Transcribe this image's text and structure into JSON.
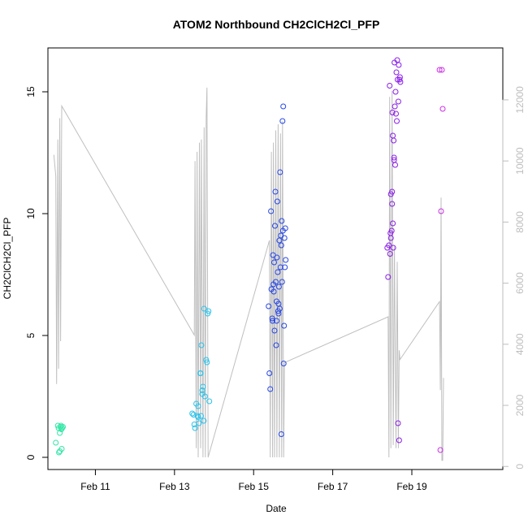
{
  "chart_data": {
    "type": "scatter",
    "title": "ATOM2 Northbound CH2ClCH2Cl_PFP",
    "xlabel": "Date",
    "ylabel": "CH2ClCH2Cl_PFP",
    "x_unit": "days since Feb 10",
    "xlim": [
      -0.2,
      11.3
    ],
    "ylim": [
      -0.5,
      16.8
    ],
    "y2lim": [
      -100,
      13700
    ],
    "x_ticks": [
      {
        "value": 1,
        "label": "Feb 11"
      },
      {
        "value": 3,
        "label": "Feb 13"
      },
      {
        "value": 5,
        "label": "Feb 15"
      },
      {
        "value": 7,
        "label": "Feb 17"
      },
      {
        "value": 9,
        "label": "Feb 19"
      }
    ],
    "y_ticks": [
      {
        "value": 0,
        "label": "0"
      },
      {
        "value": 5,
        "label": "5"
      },
      {
        "value": 10,
        "label": "10"
      },
      {
        "value": 15,
        "label": "15"
      }
    ],
    "y2_ticks": [
      {
        "value": 0,
        "label": "0"
      },
      {
        "value": 2000,
        "label": "2000"
      },
      {
        "value": 4000,
        "label": "4000"
      },
      {
        "value": 6000,
        "label": "6000"
      },
      {
        "value": 8000,
        "label": "8000"
      },
      {
        "value": 10000,
        "label": "10000"
      },
      {
        "value": 12000,
        "label": "12000"
      }
    ],
    "series": [
      {
        "name": "points_group_1",
        "color": "#33e6a6",
        "points": [
          [
            0.0,
            0.6
          ],
          [
            0.05,
            1.3
          ],
          [
            0.07,
            1.2
          ],
          [
            0.08,
            0.2
          ],
          [
            0.1,
            0.25
          ],
          [
            0.12,
            1.25
          ],
          [
            0.13,
            1.3
          ],
          [
            0.15,
            0.35
          ],
          [
            0.16,
            1.2
          ],
          [
            0.18,
            1.25
          ],
          [
            0.1,
            1.0
          ],
          [
            0.14,
            1.15
          ]
        ]
      },
      {
        "name": "points_group_2",
        "color": "#29c3ec",
        "points": [
          [
            3.45,
            1.8
          ],
          [
            3.48,
            1.75
          ],
          [
            3.5,
            1.35
          ],
          [
            3.52,
            1.2
          ],
          [
            3.55,
            2.2
          ],
          [
            3.58,
            1.7
          ],
          [
            3.6,
            1.65
          ],
          [
            3.62,
            1.4
          ],
          [
            3.65,
            3.45
          ],
          [
            3.67,
            1.7
          ],
          [
            3.68,
            4.6
          ],
          [
            3.7,
            2.6
          ],
          [
            3.72,
            2.9
          ],
          [
            3.74,
            1.5
          ],
          [
            3.75,
            6.1
          ],
          [
            3.77,
            2.5
          ],
          [
            3.8,
            4.0
          ],
          [
            3.82,
            3.9
          ],
          [
            3.84,
            5.9
          ],
          [
            3.86,
            6.0
          ],
          [
            3.88,
            2.3
          ],
          [
            3.6,
            2.1
          ],
          [
            3.66,
            3.45
          ],
          [
            3.7,
            2.75
          ]
        ]
      },
      {
        "name": "points_group_3",
        "color": "#2747e6",
        "points": [
          [
            5.38,
            6.2
          ],
          [
            5.4,
            3.45
          ],
          [
            5.42,
            2.8
          ],
          [
            5.44,
            10.1
          ],
          [
            5.45,
            6.9
          ],
          [
            5.47,
            5.7
          ],
          [
            5.49,
            8.3
          ],
          [
            5.5,
            7.1
          ],
          [
            5.52,
            8.0
          ],
          [
            5.53,
            5.2
          ],
          [
            5.54,
            9.5
          ],
          [
            5.55,
            10.9
          ],
          [
            5.56,
            7.2
          ],
          [
            5.57,
            4.6
          ],
          [
            5.58,
            6.4
          ],
          [
            5.59,
            8.2
          ],
          [
            5.6,
            10.5
          ],
          [
            5.61,
            7.6
          ],
          [
            5.62,
            6.0
          ],
          [
            5.63,
            5.9
          ],
          [
            5.64,
            7.0
          ],
          [
            5.65,
            8.9
          ],
          [
            5.66,
            6.1
          ],
          [
            5.67,
            11.7
          ],
          [
            5.68,
            7.8
          ],
          [
            5.69,
            9.1
          ],
          [
            5.7,
            8.7
          ],
          [
            5.71,
            9.7
          ],
          [
            5.72,
            7.2
          ],
          [
            5.73,
            13.8
          ],
          [
            5.74,
            9.3
          ],
          [
            5.75,
            14.4
          ],
          [
            5.76,
            3.85
          ],
          [
            5.77,
            5.4
          ],
          [
            5.78,
            9.0
          ],
          [
            5.79,
            7.8
          ],
          [
            5.8,
            9.4
          ],
          [
            5.81,
            8.1
          ],
          [
            5.7,
            0.95
          ],
          [
            5.48,
            5.6
          ],
          [
            5.51,
            6.8
          ],
          [
            5.58,
            5.6
          ],
          [
            5.63,
            6.3
          ]
        ]
      },
      {
        "name": "points_group_4",
        "color": "#8b1ee8",
        "points": [
          [
            8.38,
            8.6
          ],
          [
            8.4,
            7.4
          ],
          [
            8.42,
            8.7
          ],
          [
            8.44,
            15.25
          ],
          [
            8.45,
            8.35
          ],
          [
            8.47,
            9.0
          ],
          [
            8.49,
            9.3
          ],
          [
            8.5,
            10.9
          ],
          [
            8.51,
            14.15
          ],
          [
            8.52,
            9.6
          ],
          [
            8.53,
            8.6
          ],
          [
            8.54,
            13.0
          ],
          [
            8.55,
            12.3
          ],
          [
            8.56,
            16.2
          ],
          [
            8.57,
            14.4
          ],
          [
            8.58,
            12.0
          ],
          [
            8.59,
            15.0
          ],
          [
            8.6,
            14.1
          ],
          [
            8.61,
            15.8
          ],
          [
            8.62,
            13.8
          ],
          [
            8.63,
            16.3
          ],
          [
            8.64,
            15.5
          ],
          [
            8.65,
            1.4
          ],
          [
            8.66,
            14.6
          ],
          [
            8.67,
            16.1
          ],
          [
            8.68,
            0.7
          ],
          [
            8.69,
            15.5
          ],
          [
            8.7,
            15.6
          ],
          [
            8.71,
            15.4
          ],
          [
            8.5,
            10.4
          ],
          [
            8.55,
            12.2
          ],
          [
            8.47,
            10.8
          ],
          [
            8.52,
            13.2
          ],
          [
            8.46,
            9.2
          ]
        ]
      },
      {
        "name": "points_group_5",
        "color": "#cc2fe6",
        "points": [
          [
            9.7,
            15.9
          ],
          [
            9.72,
            0.3
          ],
          [
            9.74,
            10.1
          ],
          [
            9.76,
            15.9
          ],
          [
            9.78,
            14.3
          ]
        ]
      }
    ],
    "trace": {
      "name": "secondary_axis_trace",
      "color": "#bfbfbf",
      "points": [
        [
          -0.05,
          10200
        ],
        [
          0.0,
          9500
        ],
        [
          0.02,
          2700
        ],
        [
          0.05,
          10700
        ],
        [
          0.07,
          3200
        ],
        [
          0.1,
          11400
        ],
        [
          0.12,
          4100
        ],
        [
          0.15,
          11800
        ],
        [
          3.5,
          4300
        ],
        [
          3.52,
          10000
        ],
        [
          3.55,
          600
        ],
        [
          3.57,
          10300
        ],
        [
          3.6,
          300
        ],
        [
          3.63,
          10600
        ],
        [
          3.66,
          600
        ],
        [
          3.68,
          10700
        ],
        [
          3.72,
          300
        ],
        [
          3.75,
          11100
        ],
        [
          3.78,
          300
        ],
        [
          3.8,
          11400
        ],
        [
          3.82,
          12400
        ],
        [
          3.85,
          300
        ],
        [
          5.4,
          7400
        ],
        [
          5.42,
          300
        ],
        [
          5.45,
          10300
        ],
        [
          5.48,
          300
        ],
        [
          5.5,
          10600
        ],
        [
          5.53,
          300
        ],
        [
          5.56,
          11000
        ],
        [
          5.59,
          300
        ],
        [
          5.62,
          11200
        ],
        [
          5.65,
          300
        ],
        [
          5.68,
          10900
        ],
        [
          5.71,
          300
        ],
        [
          5.73,
          11300
        ],
        [
          5.76,
          300
        ],
        [
          5.78,
          3400
        ],
        [
          8.4,
          4900
        ],
        [
          8.42,
          300
        ],
        [
          8.44,
          12100
        ],
        [
          8.47,
          600
        ],
        [
          8.5,
          12300
        ],
        [
          8.53,
          700
        ],
        [
          8.56,
          7200
        ],
        [
          8.6,
          600
        ],
        [
          8.63,
          6700
        ],
        [
          8.66,
          600
        ],
        [
          8.68,
          3800
        ],
        [
          8.7,
          3500
        ],
        [
          9.7,
          5400
        ],
        [
          9.72,
          2500
        ],
        [
          9.74,
          8800
        ],
        [
          9.76,
          200
        ],
        [
          9.78,
          200
        ],
        [
          9.8,
          2900
        ]
      ]
    }
  }
}
